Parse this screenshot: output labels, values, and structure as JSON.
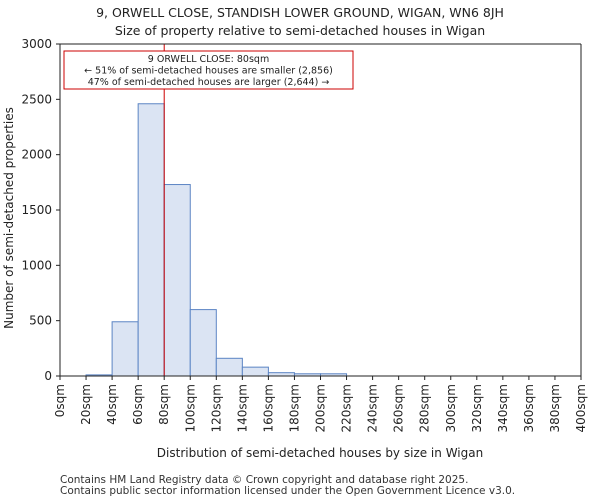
{
  "chart_data": {
    "type": "bar",
    "title": "9, ORWELL CLOSE, STANDISH LOWER GROUND, WIGAN, WN6 8JH",
    "subtitle": "Size of property relative to semi-detached houses in Wigan",
    "xlabel": "Distribution of semi-detached houses by size in Wigan",
    "ylabel": "Number of semi-detached properties",
    "ylim": [
      0,
      3000
    ],
    "xlim": [
      0,
      400
    ],
    "bin_width": 20,
    "yticks": [
      0,
      500,
      1000,
      1500,
      2000,
      2500,
      3000
    ],
    "x_tick_labels": [
      "0sqm",
      "20sqm",
      "40sqm",
      "60sqm",
      "80sqm",
      "100sqm",
      "120sqm",
      "140sqm",
      "160sqm",
      "180sqm",
      "200sqm",
      "220sqm",
      "240sqm",
      "260sqm",
      "280sqm",
      "300sqm",
      "320sqm",
      "340sqm",
      "360sqm",
      "380sqm",
      "400sqm"
    ],
    "bins": [
      {
        "start": 0,
        "end": 20,
        "value": 0
      },
      {
        "start": 20,
        "end": 40,
        "value": 10
      },
      {
        "start": 40,
        "end": 60,
        "value": 490
      },
      {
        "start": 60,
        "end": 80,
        "value": 2460
      },
      {
        "start": 80,
        "end": 100,
        "value": 1730
      },
      {
        "start": 100,
        "end": 120,
        "value": 600
      },
      {
        "start": 120,
        "end": 140,
        "value": 160
      },
      {
        "start": 140,
        "end": 160,
        "value": 80
      },
      {
        "start": 160,
        "end": 180,
        "value": 30
      },
      {
        "start": 180,
        "end": 200,
        "value": 20
      },
      {
        "start": 200,
        "end": 220,
        "value": 20
      },
      {
        "start": 220,
        "end": 240,
        "value": 0
      },
      {
        "start": 240,
        "end": 260,
        "value": 0
      },
      {
        "start": 260,
        "end": 280,
        "value": 0
      },
      {
        "start": 280,
        "end": 300,
        "value": 0
      },
      {
        "start": 300,
        "end": 320,
        "value": 0
      },
      {
        "start": 320,
        "end": 340,
        "value": 0
      },
      {
        "start": 340,
        "end": 360,
        "value": 0
      },
      {
        "start": 360,
        "end": 380,
        "value": 0
      },
      {
        "start": 380,
        "end": 400,
        "value": 0
      }
    ],
    "marker": {
      "x": 80,
      "color": "#cc0000"
    },
    "annotation": {
      "lines": [
        "9 ORWELL CLOSE: 80sqm",
        "← 51% of semi-detached houses are smaller (2,856)",
        "47% of semi-detached houses are larger (2,644) →"
      ],
      "border_color": "#cc0000"
    },
    "colors": {
      "bar_fill": "#dbe4f3",
      "bar_edge": "#5b84c4",
      "axis": "#222222"
    },
    "grid": false
  },
  "footer": {
    "line1": "Contains HM Land Registry data © Crown copyright and database right 2025.",
    "line2": "Contains public sector information licensed under the Open Government Licence v3.0."
  }
}
